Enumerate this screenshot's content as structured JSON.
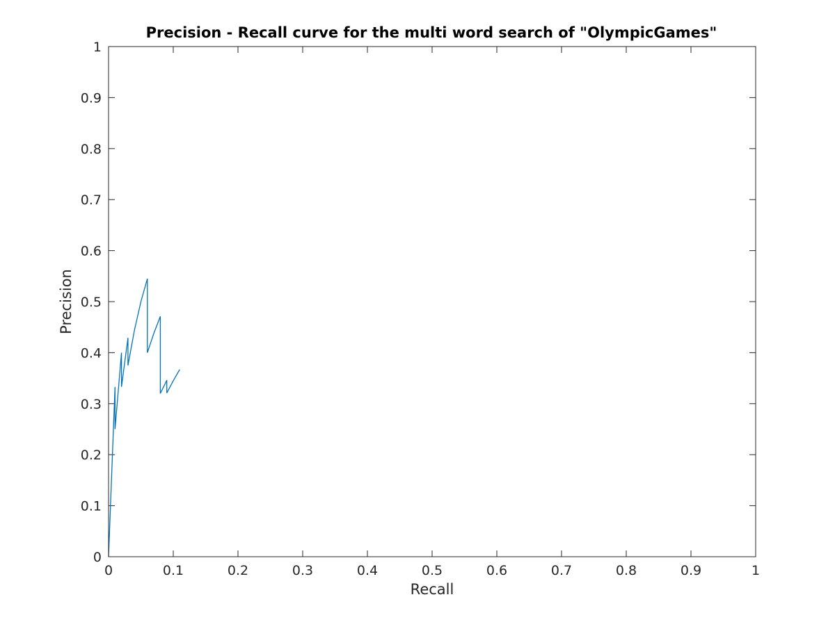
{
  "chart_data": {
    "type": "line",
    "title": "Precision - Recall curve for the multi word search of \"OlympicGames\"",
    "xlabel": "Recall",
    "ylabel": "Precision",
    "xlim": [
      0,
      1
    ],
    "ylim": [
      0,
      1
    ],
    "x_ticks": [
      0,
      0.1,
      0.2,
      0.3,
      0.4,
      0.5,
      0.6,
      0.7,
      0.8,
      0.9,
      1
    ],
    "y_ticks": [
      0,
      0.1,
      0.2,
      0.3,
      0.4,
      0.5,
      0.6,
      0.7,
      0.8,
      0.9,
      1
    ],
    "x_tick_labels": [
      "0",
      "0.1",
      "0.2",
      "0.3",
      "0.4",
      "0.5",
      "0.6",
      "0.7",
      "0.8",
      "0.9",
      "1"
    ],
    "y_tick_labels": [
      "0",
      "0.1",
      "0.2",
      "0.3",
      "0.4",
      "0.5",
      "0.6",
      "0.7",
      "0.8",
      "0.9",
      "1"
    ],
    "grid": false,
    "legend": "none",
    "line_color": "#0072BD",
    "axis_color": "#262626",
    "series": [
      {
        "x": [
          0,
          0.01,
          0.01,
          0.02,
          0.02,
          0.03,
          0.03,
          0.04,
          0.05,
          0.06,
          0.06,
          0.07,
          0.08,
          0.08,
          0.09,
          0.09,
          0.1,
          0.11
        ],
        "y": [
          0,
          0.333,
          0.25,
          0.4,
          0.333,
          0.429,
          0.375,
          0.444,
          0.5,
          0.545,
          0.4,
          0.438,
          0.471,
          0.32,
          0.346,
          0.321,
          0.345,
          0.367
        ]
      }
    ]
  }
}
